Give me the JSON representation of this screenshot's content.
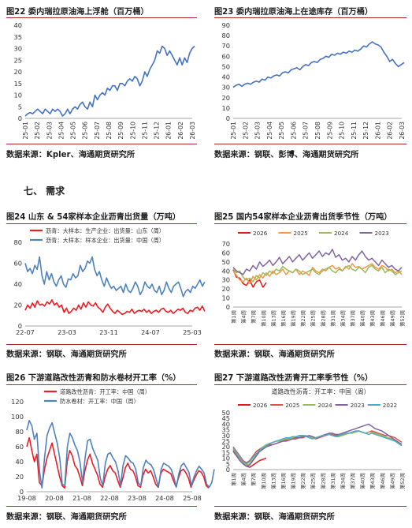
{
  "section_heading": "七、 需求",
  "charts": [
    {
      "type": "line",
      "caption": "图22 委内瑞拉原油海上浮舱（百万桶）",
      "source": "数据来源：Kpler、海通期货研究所",
      "yticks": [
        0,
        5,
        10,
        15,
        20,
        25,
        30,
        35,
        40
      ],
      "ylim": [
        0,
        40
      ],
      "xticks": [
        "25-01",
        "25-02",
        "25-03",
        "25-04",
        "25-05",
        "25-06",
        "25-07",
        "25-08",
        "25-09",
        "25-10",
        "25-11",
        "25-12",
        "26-01",
        "26-02",
        "26-03"
      ],
      "x_tick_rotation": "vertical",
      "series": [
        {
          "name": "",
          "color": "#4472c4",
          "x_start": 0,
          "x_end": 14.2,
          "values": [
            1,
            2,
            2.5,
            2,
            3,
            4,
            3,
            2,
            4,
            3,
            2,
            4,
            3,
            4,
            3,
            1,
            2,
            4,
            2,
            4,
            5,
            4,
            6,
            7,
            5,
            4,
            7,
            5,
            10,
            8,
            10,
            11,
            10,
            13,
            12,
            14,
            14,
            12,
            15,
            15,
            14,
            16,
            17,
            16,
            18,
            17,
            14,
            16,
            20,
            18,
            21,
            23,
            25,
            29,
            28,
            31,
            30,
            27,
            29,
            27,
            25,
            23,
            26,
            23,
            26,
            24,
            28,
            30,
            31
          ]
        }
      ]
    },
    {
      "type": "line",
      "caption": "图23 委内瑞拉原油海上在途库存（百万桶）",
      "source": "数据来源：钢联、彭博、海通期货研究所",
      "yticks": [
        0,
        10,
        20,
        30,
        40,
        50,
        60,
        70,
        80,
        90
      ],
      "ylim": [
        0,
        90
      ],
      "xticks": [
        "25-01",
        "25-02",
        "25-03",
        "25-04",
        "25-05",
        "25-06",
        "25-07",
        "25-08",
        "25-09",
        "25-10",
        "25-11",
        "25-12",
        "26-01",
        "26-02",
        "26-03"
      ],
      "x_tick_rotation": "vertical",
      "series": [
        {
          "name": "",
          "color": "#4472c4",
          "x_start": 0,
          "x_end": 14.2,
          "values": [
            30,
            32,
            33,
            31,
            33,
            34,
            33,
            35,
            36,
            35,
            38,
            37,
            40,
            39,
            41,
            42,
            41,
            44,
            45,
            44,
            47,
            48,
            49,
            47,
            50,
            52,
            51,
            54,
            55,
            54,
            57,
            58,
            60,
            59,
            62,
            61,
            63,
            62,
            64,
            63,
            65,
            64,
            66,
            65,
            67,
            70,
            69,
            72,
            74,
            72,
            71,
            69,
            64,
            60,
            55,
            57,
            53,
            50,
            52,
            54
          ]
        }
      ]
    },
    {
      "type": "line",
      "caption": "图24 山东 & 54家样本企业沥青出货量（万吨）",
      "source": "数据来源：钢联、海通期货研究所",
      "yticks": [
        0,
        20,
        40,
        60,
        80
      ],
      "ylim": [
        0,
        80
      ],
      "xticks": [
        "22-07",
        "23-03",
        "23-11",
        "24-07",
        "25-03"
      ],
      "legend_position": "top-left",
      "series": [
        {
          "name": "沥青：大样本：生产企业：出货量：山东（周）",
          "color": "#ee1c24",
          "x_start": 0,
          "x_end": 4.3,
          "values": [
            15,
            20,
            17,
            22,
            18,
            24,
            20,
            21,
            19,
            23,
            21,
            25,
            20,
            22,
            18,
            20,
            13,
            17,
            12,
            14,
            17,
            15,
            20,
            16,
            22,
            18,
            23,
            20,
            19,
            22,
            18,
            16,
            13,
            18,
            21,
            17,
            14,
            12,
            15,
            13,
            11,
            12,
            14,
            13,
            16,
            12,
            14,
            15,
            14,
            16,
            13,
            15,
            12,
            14,
            15,
            13,
            16,
            17,
            14,
            13,
            15,
            12,
            14,
            16,
            15,
            17,
            13,
            12,
            15,
            14,
            17,
            18,
            15,
            19,
            14
          ]
        },
        {
          "name": "沥青：大样本：样本企业：出货量：中国（周）",
          "color": "#4f81bd",
          "x_start": 0,
          "x_end": 4.3,
          "values": [
            60,
            52,
            55,
            50,
            58,
            54,
            66,
            48,
            40,
            52,
            44,
            50,
            42,
            38,
            44,
            48,
            40,
            37,
            45,
            44,
            50,
            46,
            48,
            58,
            52,
            55,
            62,
            60,
            66,
            54,
            48,
            52,
            44,
            38,
            46,
            40,
            36,
            38,
            34,
            36,
            38,
            32,
            40,
            34,
            32,
            36,
            42,
            38,
            30,
            34,
            42,
            38,
            36,
            40,
            34,
            32,
            38,
            30,
            34,
            42,
            36,
            32,
            38,
            40,
            42,
            36,
            28,
            33,
            35,
            32,
            38,
            36,
            40,
            44,
            38,
            42
          ]
        }
      ]
    },
    {
      "type": "line",
      "caption": "图25 国内54家样本企业沥青出货季节性（万吨）",
      "source": "数据来源：钢联、海通期货研究所",
      "yticks": [
        0,
        10,
        20,
        30,
        40,
        50,
        60,
        70
      ],
      "ylim": [
        0,
        70
      ],
      "xticks": [
        "第1周",
        "第4周",
        "第7周",
        "第10周",
        "第13周",
        "第16周",
        "第19周",
        "第22周",
        "第25周",
        "第28周",
        "第31周",
        "第34周",
        "第37周",
        "第40周",
        "第43周",
        "第46周",
        "第49周",
        "第52周"
      ],
      "x_tick_rotation": "vertical",
      "legend_position": "top",
      "series": [
        {
          "name": "2026",
          "color": "#e31a1c",
          "x_start": 1,
          "x_end": 11,
          "values": [
            41,
            33,
            32,
            26,
            24,
            30,
            22,
            28,
            30,
            22,
            27
          ]
        },
        {
          "name": "2025",
          "color": "#f79646",
          "x_start": 1,
          "x_end": 52,
          "values": [
            40,
            35,
            30,
            28,
            32,
            26,
            34,
            30,
            36,
            32,
            38,
            34,
            40,
            36,
            38,
            42,
            36,
            40,
            38,
            42,
            36,
            40,
            38,
            35,
            44,
            40,
            38,
            42,
            40,
            44,
            46,
            42,
            44,
            40,
            45,
            42,
            48,
            44,
            45,
            42,
            44,
            46,
            48,
            44,
            42,
            46,
            44,
            40,
            42,
            38,
            40,
            36
          ]
        },
        {
          "name": "2024",
          "color": "#9bbb59",
          "x_start": 1,
          "x_end": 52,
          "values": [
            42,
            38,
            40,
            33,
            30,
            32,
            28,
            35,
            32,
            38,
            35,
            40,
            37,
            42,
            40,
            45,
            42,
            40,
            38,
            42,
            40,
            36,
            38,
            40,
            42,
            38,
            36,
            40,
            42,
            44,
            40,
            38,
            42,
            40,
            44,
            46,
            42,
            40,
            44,
            42,
            38,
            44,
            46,
            42,
            40,
            44,
            38,
            42,
            40,
            36,
            38,
            40
          ]
        },
        {
          "name": "2023",
          "color": "#8064a2",
          "x_start": 1,
          "x_end": 52,
          "values": [
            44,
            40,
            38,
            36,
            42,
            40,
            46,
            42,
            50,
            45,
            48,
            52,
            46,
            50,
            55,
            48,
            52,
            56,
            50,
            54,
            58,
            52,
            56,
            60,
            54,
            58,
            62,
            56,
            60,
            58,
            64,
            55,
            58,
            52,
            54,
            50,
            56,
            52,
            58,
            62,
            56,
            52,
            54,
            50,
            46,
            52,
            48,
            44,
            46,
            42,
            40,
            44
          ]
        }
      ]
    },
    {
      "type": "line",
      "caption": "图26 下游道路改性沥青和防水卷材开工率（%）",
      "source": "数据来源：钢联、海通期货研究所",
      "yticks": [
        0,
        20,
        40,
        60,
        80,
        100,
        120
      ],
      "ylim": [
        0,
        120
      ],
      "xticks": [
        "19-08",
        "20-08",
        "21-08",
        "22-08",
        "23-08",
        "24-08",
        "25-08"
      ],
      "legend_position": "top-left",
      "series": [
        {
          "name": "道路改性沥青：开工率：中国（周）",
          "color": "#ee1c24",
          "x_start": 0,
          "x_end": 6.6,
          "values": [
            60,
            72,
            55,
            40,
            50,
            12,
            8,
            30,
            45,
            55,
            65,
            50,
            35,
            20,
            8,
            5,
            40,
            55,
            48,
            35,
            30,
            20,
            8,
            28,
            42,
            50,
            38,
            30,
            22,
            10,
            6,
            20,
            30,
            35,
            28,
            25,
            15,
            6,
            18,
            32,
            38,
            30,
            28,
            20,
            8,
            6,
            22,
            30,
            25,
            28,
            20,
            10,
            6,
            24,
            30,
            28,
            26,
            24,
            15,
            7,
            18,
            28,
            30,
            25,
            18,
            6,
            15,
            22,
            28,
            26,
            20,
            8,
            5
          ]
        },
        {
          "name": "防水卷材：开工率：中国（周）",
          "color": "#4f81bd",
          "x_start": 0,
          "x_end": 6.8,
          "values": [
            82,
            95,
            88,
            70,
            78,
            28,
            5,
            45,
            75,
            85,
            92,
            78,
            65,
            45,
            10,
            8,
            60,
            78,
            72,
            62,
            55,
            40,
            12,
            45,
            68,
            70,
            58,
            50,
            42,
            18,
            8,
            38,
            50,
            52,
            45,
            40,
            28,
            8,
            35,
            48,
            45,
            40,
            38,
            30,
            12,
            8,
            32,
            42,
            38,
            36,
            30,
            18,
            6,
            30,
            38,
            36,
            34,
            30,
            20,
            6,
            24,
            35,
            38,
            32,
            26,
            8,
            20,
            28,
            34,
            30,
            25,
            10,
            6,
            12,
            30
          ]
        }
      ]
    },
    {
      "type": "line",
      "caption": "图27 下游道路改性沥青开工率季节性（%）",
      "source": "数据来源：钢联、海通期货研究所",
      "chart_title": "道路改性沥青：开工率：中国（周）",
      "yticks": [
        0,
        5,
        10,
        15,
        20,
        25,
        30,
        35,
        40,
        45,
        50
      ],
      "ylim": [
        0,
        50
      ],
      "xticks": [
        "第1周",
        "第4周",
        "第7周",
        "第10周",
        "第13周",
        "第16周",
        "第19周",
        "第22周",
        "第25周",
        "第28周",
        "第31周",
        "第34周",
        "第37周",
        "第40周",
        "第43周",
        "第46周",
        "第49周",
        "第52周"
      ],
      "x_tick_rotation": "vertical",
      "legend_position": "top",
      "series": [
        {
          "name": "2026",
          "color": "#e31a1c",
          "x_start": 1,
          "x_end": 11,
          "values": [
            17,
            13,
            10,
            5,
            3,
            2,
            4,
            6,
            8,
            9,
            10
          ]
        },
        {
          "name": "2025",
          "color": "#d9534f",
          "x_start": 1,
          "x_end": 52,
          "values": [
            20,
            16,
            12,
            8,
            6,
            8,
            12,
            16,
            18,
            20,
            21,
            22,
            22,
            23,
            24,
            25,
            25,
            26,
            27,
            27,
            28,
            28,
            29,
            29,
            28,
            27,
            28,
            29,
            30,
            31,
            31,
            30,
            30,
            31,
            31,
            32,
            33,
            33,
            34,
            33,
            32,
            33,
            34,
            33,
            32,
            31,
            30,
            30,
            29,
            28,
            26,
            24
          ]
        },
        {
          "name": "2024",
          "color": "#9bbb59",
          "x_start": 1,
          "x_end": 52,
          "values": [
            18,
            14,
            10,
            6,
            4,
            5,
            9,
            13,
            17,
            20,
            22,
            23,
            24,
            25,
            25,
            26,
            27,
            27,
            28,
            29,
            29,
            30,
            30,
            29,
            28,
            28,
            29,
            30,
            31,
            31,
            30,
            29,
            29,
            30,
            31,
            32,
            32,
            33,
            34,
            33,
            32,
            33,
            33,
            32,
            31,
            30,
            29,
            28,
            27,
            26,
            24,
            22
          ]
        },
        {
          "name": "2023",
          "color": "#8064a2",
          "x_start": 1,
          "x_end": 52,
          "values": [
            16,
            12,
            8,
            5,
            3,
            4,
            8,
            12,
            16,
            18,
            20,
            21,
            22,
            23,
            24,
            25,
            26,
            26,
            27,
            28,
            28,
            29,
            29,
            30,
            29,
            28,
            29,
            30,
            31,
            32,
            32,
            31,
            31,
            32,
            33,
            34,
            35,
            36,
            37,
            38,
            39,
            40,
            38,
            36,
            35,
            34,
            32,
            30,
            28,
            26,
            24,
            22
          ]
        },
        {
          "name": "2022",
          "color": "#4bacc6",
          "x_start": 1,
          "x_end": 52,
          "values": [
            19,
            15,
            11,
            7,
            5,
            7,
            11,
            14,
            17,
            19,
            21,
            23,
            24,
            25,
            26,
            27,
            28,
            28,
            29,
            29,
            30,
            30,
            29,
            28,
            27,
            28,
            29,
            30,
            30,
            31,
            30,
            29,
            30,
            31,
            32,
            32,
            33,
            34,
            34,
            33,
            32,
            31,
            32,
            31,
            30,
            29,
            28,
            27,
            26,
            25,
            23,
            21
          ]
        }
      ]
    }
  ]
}
